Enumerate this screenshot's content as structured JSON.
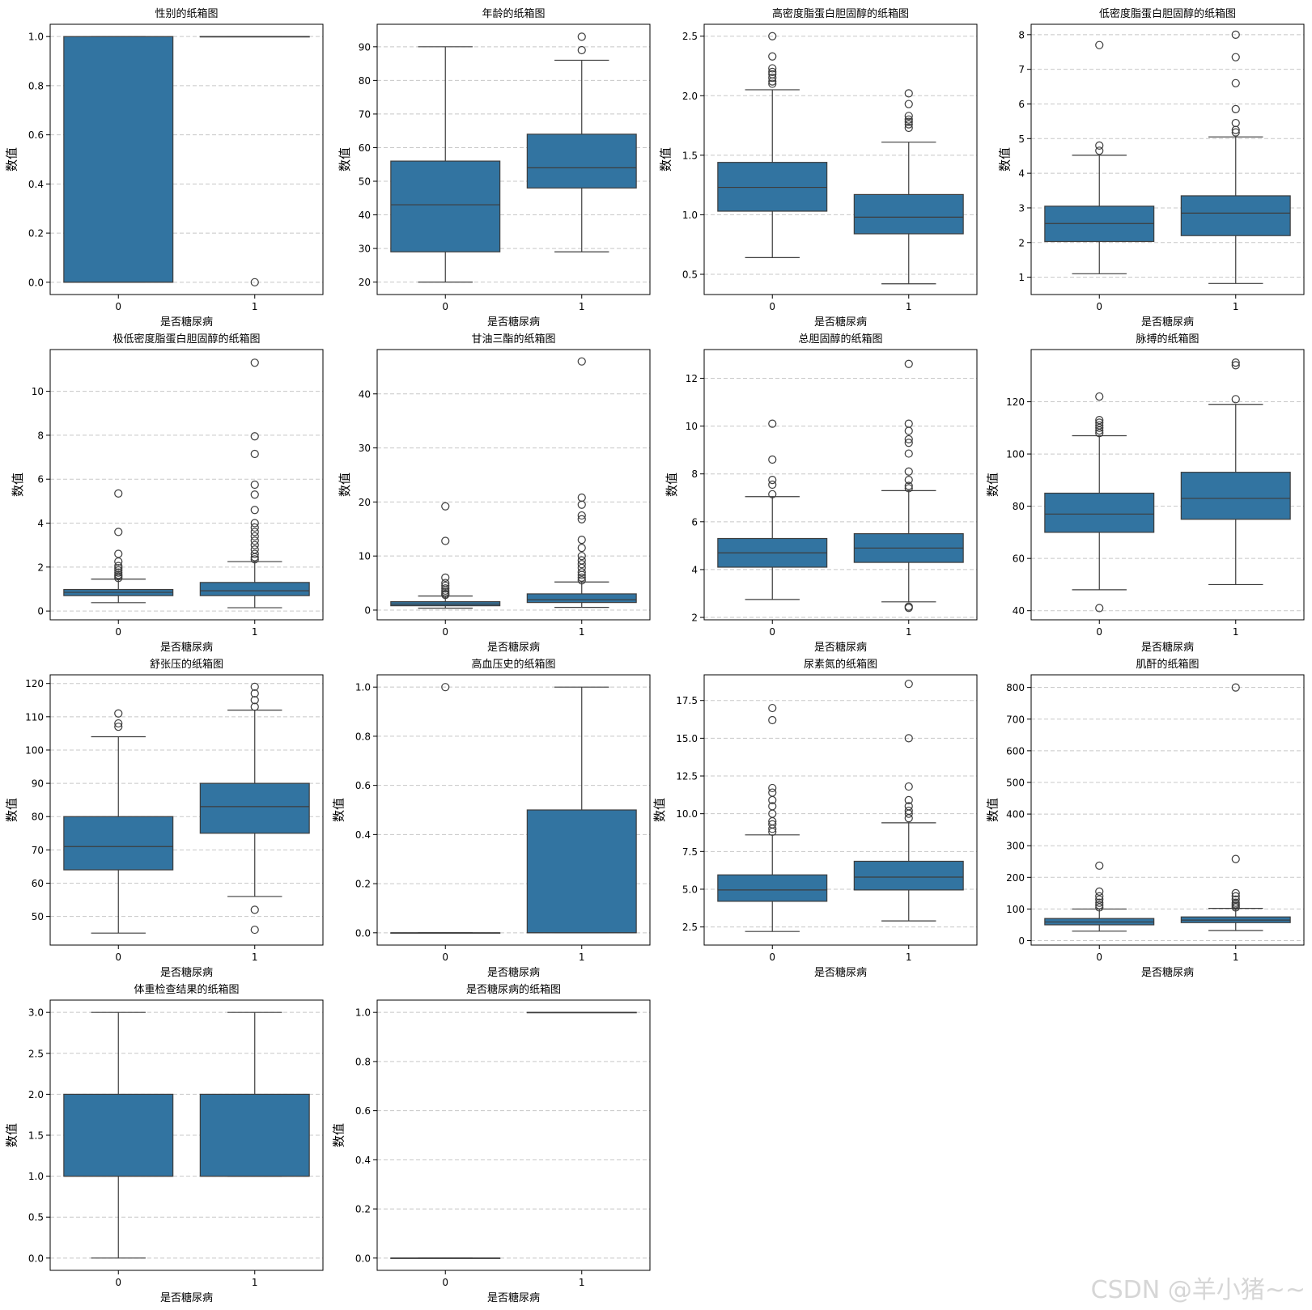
{
  "colors": {
    "box": "#3274a1",
    "line": "#3d3d3d",
    "grid": "#c8c8c8",
    "axis": "#000000"
  },
  "watermark": "CSDN @羊小猪~~",
  "chart_data": [
    {
      "type": "boxplot",
      "title": "性别的纸箱图",
      "xlabel": "是否糖尿病",
      "ylabel": "数值",
      "categories": [
        "0",
        "1"
      ],
      "ylim": [
        -0.05,
        1.05
      ],
      "yticks": [
        0.0,
        0.2,
        0.4,
        0.6,
        0.8,
        1.0
      ],
      "yticklabels": [
        "0.0",
        "0.2",
        "0.4",
        "0.6",
        "0.8",
        "1.0"
      ],
      "boxes": [
        {
          "whislo": 0,
          "q1": 0,
          "med": 0,
          "q3": 1,
          "whishi": 1,
          "fliers": []
        },
        {
          "whislo": 1,
          "q1": 1,
          "med": 1,
          "q3": 1,
          "whishi": 1,
          "fliers": [
            0
          ]
        }
      ]
    },
    {
      "type": "boxplot",
      "title": "年龄的纸箱图",
      "xlabel": "是否糖尿病",
      "ylabel": "数值",
      "categories": [
        "0",
        "1"
      ],
      "ylim": [
        16.3,
        96.7
      ],
      "yticks": [
        20,
        30,
        40,
        50,
        60,
        70,
        80,
        90
      ],
      "yticklabels": [
        "20",
        "30",
        "40",
        "50",
        "60",
        "70",
        "80",
        "90"
      ],
      "boxes": [
        {
          "whislo": 20,
          "q1": 29,
          "med": 43,
          "q3": 56,
          "whishi": 90,
          "fliers": []
        },
        {
          "whislo": 29,
          "q1": 48,
          "med": 54,
          "q3": 64,
          "whishi": 86,
          "fliers": [
            89,
            93
          ]
        }
      ]
    },
    {
      "type": "boxplot",
      "title": "高密度脂蛋白胆固醇的纸箱图",
      "xlabel": "是否糖尿病",
      "ylabel": "数值",
      "categories": [
        "0",
        "1"
      ],
      "ylim": [
        0.33,
        2.6
      ],
      "yticks": [
        0.5,
        1.0,
        1.5,
        2.0,
        2.5
      ],
      "yticklabels": [
        "0.5",
        "1.0",
        "1.5",
        "2.0",
        "2.5"
      ],
      "boxes": [
        {
          "whislo": 0.64,
          "q1": 1.03,
          "med": 1.23,
          "q3": 1.44,
          "whishi": 2.05,
          "fliers": [
            2.1,
            2.12,
            2.15,
            2.18,
            2.2,
            2.23,
            2.33,
            2.5
          ]
        },
        {
          "whislo": 0.42,
          "q1": 0.84,
          "med": 0.98,
          "q3": 1.17,
          "whishi": 1.61,
          "fliers": [
            1.73,
            1.76,
            1.78,
            1.8,
            1.83,
            1.93,
            2.02
          ]
        }
      ]
    },
    {
      "type": "boxplot",
      "title": "低密度脂蛋白胆固醇的纸箱图",
      "xlabel": "是否糖尿病",
      "ylabel": "数值",
      "categories": [
        "0",
        "1"
      ],
      "ylim": [
        0.5,
        8.3
      ],
      "yticks": [
        1,
        2,
        3,
        4,
        5,
        6,
        7,
        8
      ],
      "yticklabels": [
        "1",
        "2",
        "3",
        "4",
        "5",
        "6",
        "7",
        "8"
      ],
      "boxes": [
        {
          "whislo": 1.1,
          "q1": 2.03,
          "med": 2.55,
          "q3": 3.05,
          "whishi": 4.52,
          "fliers": [
            4.65,
            4.8,
            7.7
          ]
        },
        {
          "whislo": 0.82,
          "q1": 2.2,
          "med": 2.85,
          "q3": 3.35,
          "whishi": 5.05,
          "fliers": [
            5.18,
            5.25,
            5.45,
            5.85,
            6.6,
            7.35,
            8.0
          ]
        }
      ]
    },
    {
      "type": "boxplot",
      "title": "极低密度脂蛋白胆固醇的纸箱图",
      "xlabel": "是否糖尿病",
      "ylabel": "数值",
      "categories": [
        "0",
        "1"
      ],
      "ylim": [
        -0.4,
        11.9
      ],
      "yticks": [
        0,
        2,
        4,
        6,
        8,
        10
      ],
      "yticklabels": [
        "0",
        "2",
        "4",
        "6",
        "8",
        "10"
      ],
      "boxes": [
        {
          "whislo": 0.38,
          "q1": 0.7,
          "med": 0.85,
          "q3": 0.98,
          "whishi": 1.45,
          "fliers": [
            1.5,
            1.58,
            1.65,
            1.75,
            1.85,
            1.95,
            2.05,
            2.25,
            2.6,
            3.6,
            5.35
          ]
        },
        {
          "whislo": 0.15,
          "q1": 0.7,
          "med": 0.92,
          "q3": 1.3,
          "whishi": 2.25,
          "fliers": [
            2.35,
            2.45,
            2.6,
            2.8,
            3.0,
            3.2,
            3.4,
            3.6,
            3.8,
            4.0,
            4.6,
            5.3,
            5.75,
            7.15,
            7.95,
            11.3
          ]
        }
      ]
    },
    {
      "type": "boxplot",
      "title": "甘油三酯的纸箱图",
      "xlabel": "是否糖尿病",
      "ylabel": "数值",
      "categories": [
        "0",
        "1"
      ],
      "ylim": [
        -1.8,
        48.2
      ],
      "yticks": [
        0,
        10,
        20,
        30,
        40
      ],
      "yticklabels": [
        "0",
        "10",
        "20",
        "30",
        "40"
      ],
      "boxes": [
        {
          "whislo": 0.35,
          "q1": 0.8,
          "med": 1.1,
          "q3": 1.55,
          "whishi": 2.6,
          "fliers": [
            2.8,
            3.0,
            3.3,
            3.6,
            4.0,
            4.5,
            5.0,
            6.0,
            12.8,
            19.2
          ]
        },
        {
          "whislo": 0.5,
          "q1": 1.4,
          "med": 1.9,
          "q3": 3.0,
          "whishi": 5.2,
          "fliers": [
            5.5,
            6.0,
            6.5,
            7.0,
            7.8,
            8.5,
            9.2,
            10.0,
            11.5,
            13.0,
            16.8,
            17.5,
            19.5,
            20.8,
            46.0
          ]
        }
      ]
    },
    {
      "type": "boxplot",
      "title": "总胆固醇的纸箱图",
      "xlabel": "是否糖尿病",
      "ylabel": "数值",
      "categories": [
        "0",
        "1"
      ],
      "ylim": [
        1.9,
        13.2
      ],
      "yticks": [
        2,
        4,
        6,
        8,
        10,
        12
      ],
      "yticklabels": [
        "2",
        "4",
        "6",
        "8",
        "10",
        "12"
      ],
      "boxes": [
        {
          "whislo": 2.75,
          "q1": 4.1,
          "med": 4.7,
          "q3": 5.3,
          "whishi": 7.05,
          "fliers": [
            7.15,
            7.55,
            7.75,
            8.6,
            10.1
          ]
        },
        {
          "whislo": 2.65,
          "q1": 4.3,
          "med": 4.9,
          "q3": 5.5,
          "whishi": 7.3,
          "fliers": [
            2.4,
            2.45,
            7.4,
            7.5,
            7.75,
            8.1,
            8.85,
            9.3,
            9.45,
            9.8,
            10.1,
            12.6
          ]
        }
      ]
    },
    {
      "type": "boxplot",
      "title": "脉搏的纸箱图",
      "xlabel": "是否糖尿病",
      "ylabel": "数值",
      "categories": [
        "0",
        "1"
      ],
      "ylim": [
        36.5,
        140
      ],
      "yticks": [
        40,
        60,
        80,
        100,
        120
      ],
      "yticklabels": [
        "40",
        "60",
        "80",
        "100",
        "120"
      ],
      "boxes": [
        {
          "whislo": 48,
          "q1": 70,
          "med": 77,
          "q3": 85,
          "whishi": 107,
          "fliers": [
            41,
            108,
            109,
            110,
            111,
            112,
            113,
            122
          ]
        },
        {
          "whislo": 50,
          "q1": 75,
          "med": 83,
          "q3": 93,
          "whishi": 119,
          "fliers": [
            121,
            134,
            135
          ]
        }
      ]
    },
    {
      "type": "boxplot",
      "title": "舒张压的纸箱图",
      "xlabel": "是否糖尿病",
      "ylabel": "数值",
      "categories": [
        "0",
        "1"
      ],
      "ylim": [
        41.4,
        122.6
      ],
      "yticks": [
        50,
        60,
        70,
        80,
        90,
        100,
        110,
        120
      ],
      "yticklabels": [
        "50",
        "60",
        "70",
        "80",
        "90",
        "100",
        "110",
        "120"
      ],
      "boxes": [
        {
          "whislo": 45,
          "q1": 64,
          "med": 71,
          "q3": 80,
          "whishi": 104,
          "fliers": [
            107,
            108,
            111
          ]
        },
        {
          "whislo": 56,
          "q1": 75,
          "med": 83,
          "q3": 90,
          "whishi": 112,
          "fliers": [
            46,
            52,
            113,
            115,
            117,
            119
          ]
        }
      ]
    },
    {
      "type": "boxplot",
      "title": "高血压史的纸箱图",
      "xlabel": "是否糖尿病",
      "ylabel": "数值",
      "categories": [
        "0",
        "1"
      ],
      "ylim": [
        -0.05,
        1.05
      ],
      "yticks": [
        0.0,
        0.2,
        0.4,
        0.6,
        0.8,
        1.0
      ],
      "yticklabels": [
        "0.0",
        "0.2",
        "0.4",
        "0.6",
        "0.8",
        "1.0"
      ],
      "boxes": [
        {
          "whislo": 0,
          "q1": 0,
          "med": 0,
          "q3": 0,
          "whishi": 0,
          "fliers": [
            1
          ]
        },
        {
          "whislo": 0,
          "q1": 0,
          "med": 0,
          "q3": 0.5,
          "whishi": 1,
          "fliers": []
        }
      ]
    },
    {
      "type": "boxplot",
      "title": "尿素氮的纸箱图",
      "xlabel": "是否糖尿病",
      "ylabel": "数值",
      "categories": [
        "0",
        "1"
      ],
      "ylim": [
        1.3,
        19.2
      ],
      "yticks": [
        2.5,
        5.0,
        7.5,
        10.0,
        12.5,
        15.0,
        17.5
      ],
      "yticklabels": [
        "2.5",
        "5.0",
        "7.5",
        "10.0",
        "12.5",
        "15.0",
        "17.5"
      ],
      "boxes": [
        {
          "whislo": 2.2,
          "q1": 4.2,
          "med": 4.95,
          "q3": 5.95,
          "whishi": 8.6,
          "fliers": [
            8.8,
            9.0,
            9.3,
            9.5,
            10.0,
            10.5,
            10.9,
            11.4,
            11.7,
            16.2,
            17.0
          ]
        },
        {
          "whislo": 2.9,
          "q1": 4.95,
          "med": 5.8,
          "q3": 6.85,
          "whishi": 9.4,
          "fliers": [
            9.7,
            10.0,
            10.2,
            10.5,
            10.9,
            11.8,
            15.0,
            18.6
          ]
        }
      ]
    },
    {
      "type": "boxplot",
      "title": "肌酐的纸箱图",
      "xlabel": "是否糖尿病",
      "ylabel": "数值",
      "categories": [
        "0",
        "1"
      ],
      "ylim": [
        -14,
        840
      ],
      "yticks": [
        0,
        100,
        200,
        300,
        400,
        500,
        600,
        700,
        800
      ],
      "yticklabels": [
        "0",
        "100",
        "200",
        "300",
        "400",
        "500",
        "600",
        "700",
        "800"
      ],
      "boxes": [
        {
          "whislo": 30,
          "q1": 50,
          "med": 59,
          "q3": 70,
          "whishi": 100,
          "fliers": [
            105,
            112,
            120,
            130,
            140,
            155,
            237
          ]
        },
        {
          "whislo": 32,
          "q1": 57,
          "med": 65,
          "q3": 75,
          "whishi": 102,
          "fliers": [
            105,
            110,
            115,
            120,
            130,
            140,
            150,
            258,
            800
          ]
        }
      ]
    },
    {
      "type": "boxplot",
      "title": "体重检查结果的纸箱图",
      "xlabel": "是否糖尿病",
      "ylabel": "数值",
      "categories": [
        "0",
        "1"
      ],
      "ylim": [
        -0.15,
        3.15
      ],
      "yticks": [
        0.0,
        0.5,
        1.0,
        1.5,
        2.0,
        2.5,
        3.0
      ],
      "yticklabels": [
        "0.0",
        "0.5",
        "1.0",
        "1.5",
        "2.0",
        "2.5",
        "3.0"
      ],
      "boxes": [
        {
          "whislo": 0,
          "q1": 1,
          "med": 1,
          "q3": 2,
          "whishi": 3,
          "fliers": []
        },
        {
          "whislo": 1,
          "q1": 1,
          "med": 1,
          "q3": 2,
          "whishi": 3,
          "fliers": []
        }
      ]
    },
    {
      "type": "boxplot",
      "title": "是否糖尿病的纸箱图",
      "xlabel": "是否糖尿病",
      "ylabel": "数值",
      "categories": [
        "0",
        "1"
      ],
      "ylim": [
        -0.05,
        1.05
      ],
      "yticks": [
        0.0,
        0.2,
        0.4,
        0.6,
        0.8,
        1.0
      ],
      "yticklabels": [
        "0.0",
        "0.2",
        "0.4",
        "0.6",
        "0.8",
        "1.0"
      ],
      "boxes": [
        {
          "whislo": 0,
          "q1": 0,
          "med": 0,
          "q3": 0,
          "whishi": 0,
          "fliers": []
        },
        {
          "whislo": 1,
          "q1": 1,
          "med": 1,
          "q3": 1,
          "whishi": 1,
          "fliers": []
        }
      ]
    }
  ]
}
